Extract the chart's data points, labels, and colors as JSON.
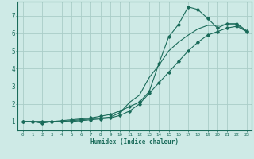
{
  "xlabel": "Humidex (Indice chaleur)",
  "bg_color": "#ceeae6",
  "grid_color": "#aacdc8",
  "line_color": "#1a6b5a",
  "xlim": [
    -0.5,
    23.5
  ],
  "ylim": [
    0.5,
    7.8
  ],
  "xticks": [
    0,
    1,
    2,
    3,
    4,
    5,
    6,
    7,
    8,
    9,
    10,
    11,
    12,
    13,
    14,
    15,
    16,
    17,
    18,
    19,
    20,
    21,
    22,
    23
  ],
  "yticks": [
    1,
    2,
    3,
    4,
    5,
    6,
    7
  ],
  "series1_x": [
    0,
    1,
    2,
    3,
    4,
    5,
    6,
    7,
    8,
    9,
    10,
    11,
    12,
    13,
    14,
    15,
    16,
    17,
    18,
    19,
    20,
    21,
    22,
    23
  ],
  "series1_y": [
    1.0,
    1.0,
    0.9,
    1.0,
    1.05,
    1.1,
    1.15,
    1.2,
    1.3,
    1.4,
    1.6,
    1.85,
    2.1,
    2.7,
    4.3,
    5.8,
    6.5,
    7.5,
    7.35,
    6.85,
    6.3,
    6.55,
    6.55,
    6.15
  ],
  "series2_x": [
    0,
    1,
    2,
    3,
    4,
    5,
    6,
    7,
    8,
    9,
    10,
    11,
    12,
    13,
    14,
    15,
    16,
    17,
    18,
    19,
    20,
    21,
    22,
    23
  ],
  "series2_y": [
    1.0,
    1.0,
    1.0,
    1.0,
    1.0,
    1.05,
    1.1,
    1.15,
    1.2,
    1.25,
    1.5,
    2.1,
    2.5,
    3.5,
    4.2,
    5.0,
    5.5,
    5.9,
    6.25,
    6.45,
    6.45,
    6.5,
    6.5,
    6.1
  ],
  "series3_x": [
    0,
    1,
    2,
    3,
    4,
    5,
    6,
    7,
    8,
    9,
    10,
    11,
    12,
    13,
    14,
    15,
    16,
    17,
    18,
    19,
    20,
    21,
    22,
    23
  ],
  "series3_y": [
    1.0,
    1.0,
    1.0,
    1.0,
    1.0,
    1.0,
    1.05,
    1.1,
    1.15,
    1.2,
    1.35,
    1.6,
    2.0,
    2.6,
    3.2,
    3.8,
    4.4,
    5.0,
    5.5,
    5.9,
    6.1,
    6.3,
    6.4,
    6.1
  ]
}
